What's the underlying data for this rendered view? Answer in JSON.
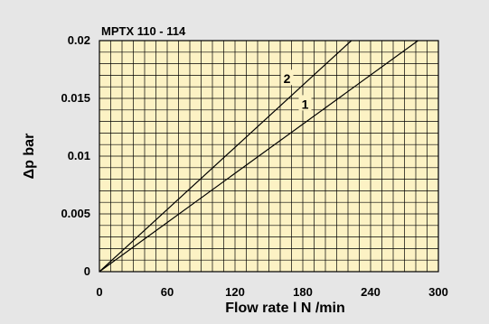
{
  "chart_data": {
    "type": "line",
    "title": "MPTX 110 - 114",
    "xlabel": "Flow rate l N /min",
    "ylabel": "Δp bar",
    "xlim": [
      0,
      300
    ],
    "ylim": [
      0,
      0.02
    ],
    "x_ticks": [
      "0",
      "60",
      "120",
      "180",
      "240",
      "300"
    ],
    "y_ticks": [
      "0",
      "0.005",
      "0.01",
      "0.015",
      "0.02"
    ],
    "grid": true,
    "background_color": "#fcf2c4",
    "line_color": "#000000",
    "series": [
      {
        "name": "1",
        "x": [
          0,
          282
        ],
        "y": [
          0,
          0.02
        ],
        "label_at": [
          182,
          0.0145
        ]
      },
      {
        "name": "2",
        "x": [
          0,
          223
        ],
        "y": [
          0,
          0.02
        ],
        "label_at": [
          166,
          0.0167
        ]
      }
    ]
  }
}
